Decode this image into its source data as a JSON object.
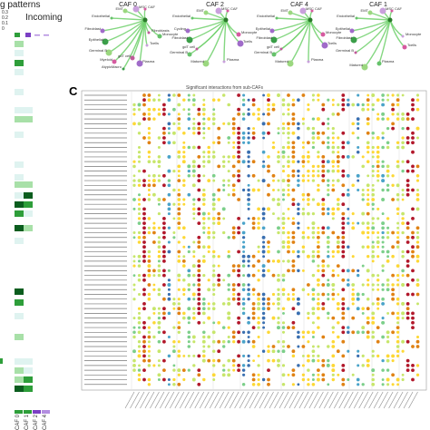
{
  "left_panel": {
    "title_partial": "g patterns",
    "incoming_label": "Incoming",
    "scale_labels": [
      "0.3",
      "0.2",
      "0.1",
      "0"
    ],
    "column_labels": [
      "CAF 0",
      "CAF 1",
      "CAF 2",
      "CAF 4"
    ],
    "colors": {
      "dark": "#0b5d1e",
      "mid": "#2e9e3a",
      "light": "#a8e0a8",
      "pale": "#dff3f0",
      "purple": "#7b3fc4",
      "violet": "#b38ee0"
    }
  },
  "networks": [
    {
      "title": "CAF 0",
      "nodes": [
        "Endothelial",
        "EMT",
        "MSC",
        "CAF",
        "Fibroblast",
        "Epithelial",
        "Fibroblasts",
        "Monocyte",
        "Germinal B",
        "Tcells",
        "Myeloid",
        "Plasma",
        "AtypicMacro",
        "gdT cell"
      ]
    },
    {
      "title": "CAF 2",
      "nodes": [
        "Endothelial",
        "EMT",
        "MSC",
        "CAF",
        "Cycling",
        "Fibroblast",
        "gdT cell",
        "Germinal B",
        "Matured",
        "Plasma",
        "Monocyte",
        "Tcells"
      ]
    },
    {
      "title": "CAF 4",
      "nodes": [
        "Endothelial",
        "EMT",
        "MSC",
        "CAF",
        "Epithelial",
        "Fibroblast",
        "gdT cell",
        "Germinal B",
        "Matured",
        "Plasma",
        "Monocyte",
        "Tcells"
      ]
    },
    {
      "title": "CAF 1",
      "nodes": [
        "Endothelial",
        "EMT",
        "MSC",
        "CAF",
        "Epithelial",
        "Fibroblast",
        "Germinal B",
        "Plasma",
        "Matured",
        "Monocyte",
        "Tcells"
      ]
    }
  ],
  "panel_c": {
    "letter": "C",
    "title": "Significant interactions from sub-CAFs",
    "dot_colors": [
      "#b2182b",
      "#e08214",
      "#fdd835",
      "#c7e66b",
      "#7ccf8a",
      "#4aa3c9",
      "#3a6fb0"
    ]
  }
}
